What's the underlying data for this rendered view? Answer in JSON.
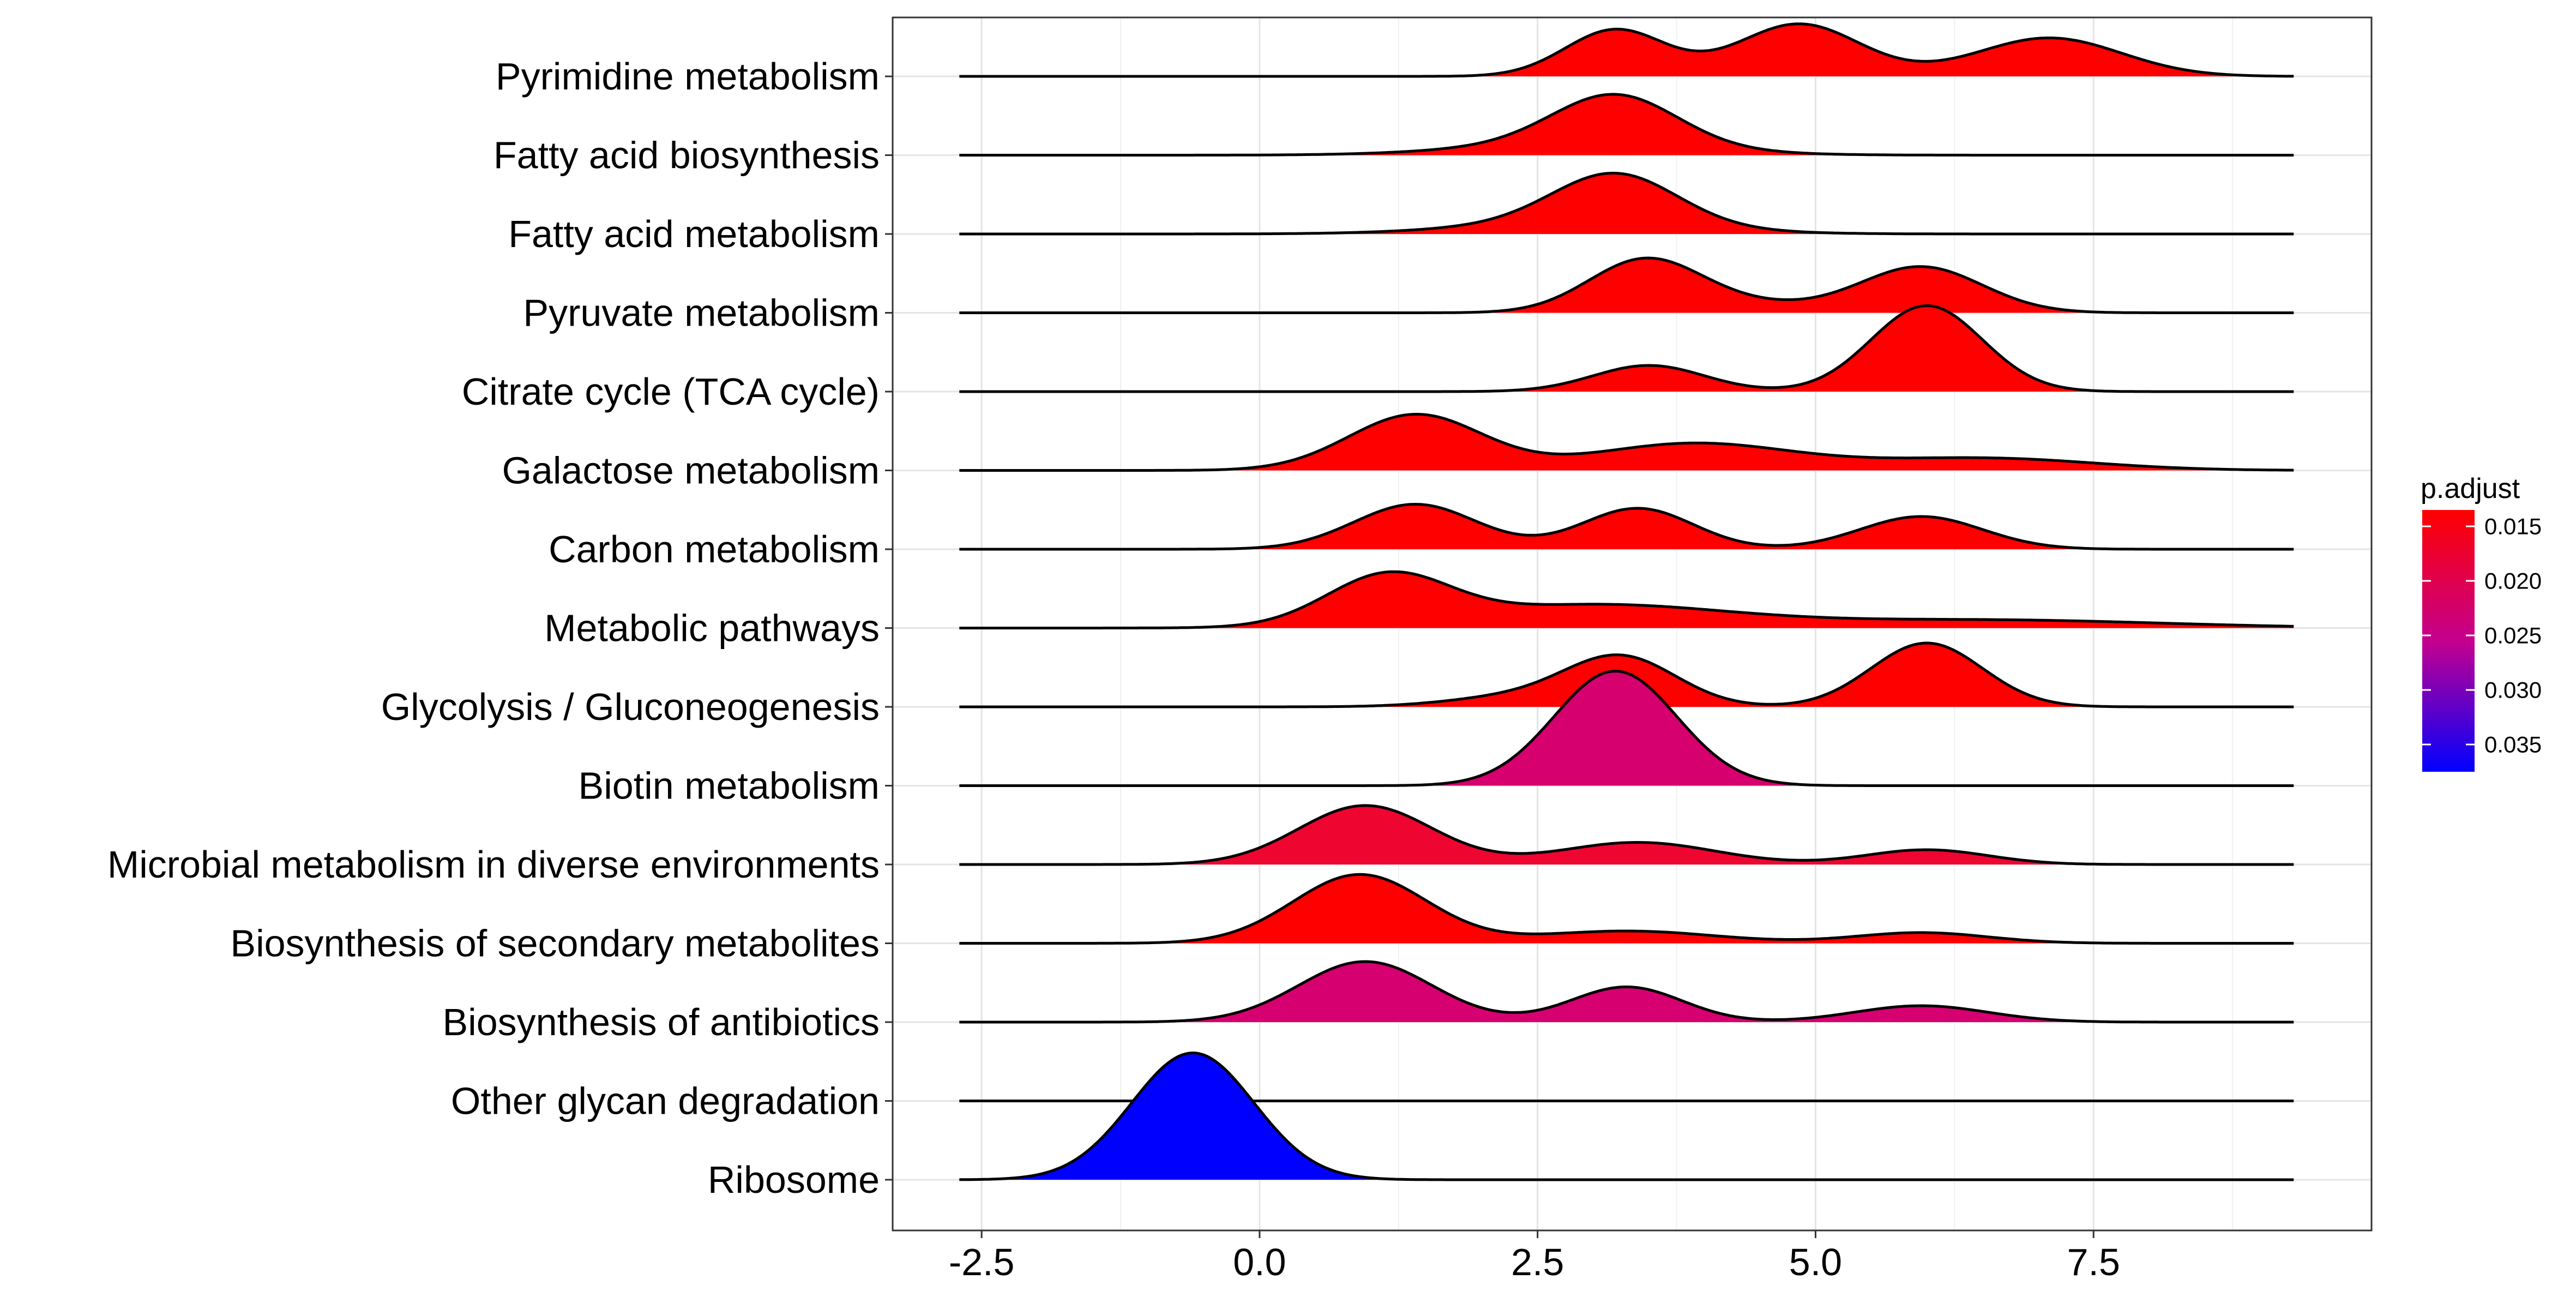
{
  "chart_data": {
    "type": "ridgeline",
    "title": "",
    "xlabel": "",
    "ylabel": "",
    "xlim": [
      -3.3,
      10.0
    ],
    "x_ticks": [
      -2.5,
      0.0,
      2.5,
      5.0,
      7.5
    ],
    "x_tick_labels": [
      "-2.5",
      "0.0",
      "2.5",
      "5.0",
      "7.5"
    ],
    "x_range": [
      -2.7,
      9.3
    ],
    "grid": true,
    "legend": {
      "title": "p.adjust",
      "placement": "right",
      "colors": [
        "#ff0000",
        "#0000ff"
      ],
      "range": [
        0.0135,
        0.0375
      ],
      "ticks": [
        0.015,
        0.02,
        0.025,
        0.03,
        0.035
      ],
      "tick_labels": [
        "0.015",
        "0.020",
        "0.025",
        "0.030",
        "0.035"
      ]
    },
    "categories": [
      "Pyrimidine metabolism",
      "Fatty acid biosynthesis",
      "Fatty acid metabolism",
      "Pyruvate metabolism",
      "Citrate cycle (TCA cycle)",
      "Galactose metabolism",
      "Carbon metabolism",
      "Metabolic pathways",
      "Glycolysis / Gluconeogenesis",
      "Biotin metabolism",
      "Microbial metabolism in diverse environments",
      "Biosynthesis of secondary metabolites",
      "Biosynthesis of antibiotics",
      "Other glycan degradation",
      "Ribosome"
    ],
    "series": [
      {
        "name": "Pyrimidine metabolism",
        "color": "#ff0000",
        "components": [
          {
            "mu": 3.2,
            "sd": 0.45,
            "h": 0.57
          },
          {
            "mu": 4.85,
            "sd": 0.55,
            "h": 0.64
          },
          {
            "mu": 7.1,
            "sd": 0.65,
            "h": 0.47
          }
        ]
      },
      {
        "name": "Fatty acid biosynthesis",
        "color": "#ff0000",
        "components": [
          {
            "mu": 3.2,
            "sd": 0.55,
            "h": 0.6
          },
          {
            "mu": 2.9,
            "sd": 1.0,
            "h": 0.15
          }
        ]
      },
      {
        "name": "Fatty acid metabolism",
        "color": "#ff0000",
        "components": [
          {
            "mu": 3.2,
            "sd": 0.55,
            "h": 0.6
          },
          {
            "mu": 2.9,
            "sd": 1.0,
            "h": 0.15
          }
        ]
      },
      {
        "name": "Pyruvate metabolism",
        "color": "#ff0000",
        "components": [
          {
            "mu": 3.45,
            "sd": 0.5,
            "h": 0.6
          },
          {
            "mu": 4.2,
            "sd": 0.7,
            "h": 0.12
          },
          {
            "mu": 5.95,
            "sd": 0.55,
            "h": 0.56
          }
        ]
      },
      {
        "name": "Citrate cycle (TCA cycle)",
        "color": "#ff0000",
        "components": [
          {
            "mu": 3.5,
            "sd": 0.5,
            "h": 0.32
          },
          {
            "mu": 6.0,
            "sd": 0.5,
            "h": 1.05
          }
        ]
      },
      {
        "name": "Galactose metabolism",
        "color": "#ff0000",
        "components": [
          {
            "mu": 1.4,
            "sd": 0.6,
            "h": 0.68
          },
          {
            "mu": 3.9,
            "sd": 0.9,
            "h": 0.33
          },
          {
            "mu": 6.5,
            "sd": 1.0,
            "h": 0.15
          }
        ]
      },
      {
        "name": "Carbon metabolism",
        "color": "#ff0000",
        "components": [
          {
            "mu": 1.4,
            "sd": 0.55,
            "h": 0.55
          },
          {
            "mu": 3.4,
            "sd": 0.5,
            "h": 0.5
          },
          {
            "mu": 5.95,
            "sd": 0.55,
            "h": 0.4
          }
        ]
      },
      {
        "name": "Metabolic pathways",
        "color": "#ff0000",
        "components": [
          {
            "mu": 1.15,
            "sd": 0.55,
            "h": 0.6
          },
          {
            "mu": 3.0,
            "sd": 1.2,
            "h": 0.28
          },
          {
            "mu": 6.5,
            "sd": 1.6,
            "h": 0.1
          }
        ]
      },
      {
        "name": "Glycolysis / Gluconeogenesis",
        "color": "#ff0000",
        "components": [
          {
            "mu": 3.25,
            "sd": 0.5,
            "h": 0.6
          },
          {
            "mu": 2.3,
            "sd": 0.6,
            "h": 0.12
          },
          {
            "mu": 6.0,
            "sd": 0.5,
            "h": 0.78
          }
        ]
      },
      {
        "name": "Biotin metabolism",
        "color": "#d6006f",
        "components": [
          {
            "mu": 3.2,
            "sd": 0.55,
            "h": 1.4
          }
        ]
      },
      {
        "name": "Microbial metabolism in diverse environments",
        "color": "#ee0530",
        "components": [
          {
            "mu": 0.95,
            "sd": 0.6,
            "h": 0.72
          },
          {
            "mu": 3.4,
            "sd": 0.7,
            "h": 0.27
          },
          {
            "mu": 6.0,
            "sd": 0.55,
            "h": 0.18
          }
        ]
      },
      {
        "name": "Biosynthesis of secondary metabolites",
        "color": "#ff0000",
        "components": [
          {
            "mu": 0.9,
            "sd": 0.6,
            "h": 0.84
          },
          {
            "mu": 3.3,
            "sd": 0.8,
            "h": 0.15
          },
          {
            "mu": 5.95,
            "sd": 0.6,
            "h": 0.13
          }
        ]
      },
      {
        "name": "Biosynthesis of antibiotics",
        "color": "#d70070",
        "components": [
          {
            "mu": 0.95,
            "sd": 0.6,
            "h": 0.74
          },
          {
            "mu": 3.3,
            "sd": 0.5,
            "h": 0.43
          },
          {
            "mu": 5.95,
            "sd": 0.6,
            "h": 0.2
          }
        ]
      },
      {
        "name": "Other glycan degradation",
        "color": "#0000ff",
        "components": []
      },
      {
        "name": "Ribosome",
        "color": "#0000ff",
        "components": [
          {
            "mu": -0.6,
            "sd": 0.55,
            "h": 1.55
          }
        ]
      }
    ]
  }
}
